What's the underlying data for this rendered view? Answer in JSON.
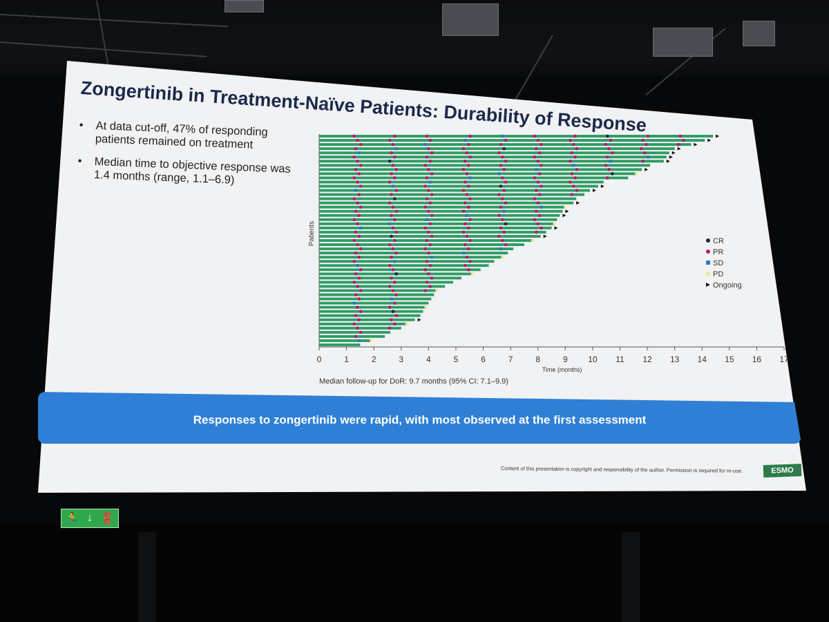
{
  "slide": {
    "title": "Zongertinib in Treatment-Naïve Patients: Durability of Response",
    "bullets": [
      "At data cut-off, 47% of responding patients remained on treatment",
      "Median time to objective response was 1.4 months (range, 1.1–6.9)"
    ],
    "banner": "Responses to zongertinib were rapid, with most observed at the first assessment",
    "footnote": "Content of this presentation is copyright and responsibility of the author. Permission is required for re-use.",
    "logo_text": "ESMO"
  },
  "chart_data": {
    "type": "swimmer",
    "title": "",
    "xlabel": "Time (months)",
    "ylabel": "Patients",
    "xlim": [
      0,
      17
    ],
    "x_ticks": [
      0,
      1,
      2,
      3,
      4,
      5,
      6,
      7,
      8,
      9,
      10,
      11,
      12,
      13,
      14,
      15,
      16,
      17
    ],
    "caption": "Median follow-up for DoR: 9.7 months (95% CI: 7.1–9.9)",
    "legend": [
      {
        "label": "CR",
        "color": "#1f2b45",
        "shape": "circle"
      },
      {
        "label": "PR",
        "color": "#b51f73",
        "shape": "circle"
      },
      {
        "label": "SD",
        "color": "#2f79c2",
        "shape": "square"
      },
      {
        "label": "PD",
        "color": "#f2e58a",
        "shape": "circle"
      },
      {
        "label": "Ongoing",
        "color": "#111111",
        "shape": "triangle"
      }
    ],
    "bar_color": "#2e9b63",
    "durations": [
      14.4,
      14.1,
      13.6,
      13.0,
      12.8,
      12.7,
      12.6,
      12.1,
      11.8,
      11.6,
      11.3,
      10.4,
      10.2,
      9.9,
      9.7,
      9.4,
      9.3,
      9.0,
      8.9,
      8.8,
      8.7,
      8.6,
      8.5,
      8.3,
      8.1,
      7.8,
      7.5,
      7.1,
      6.9,
      6.7,
      6.4,
      6.2,
      5.9,
      5.6,
      5.2,
      4.9,
      4.6,
      4.3,
      4.2,
      4.1,
      4.0,
      3.9,
      3.8,
      3.7,
      3.5,
      3.2,
      3.0,
      2.6,
      2.4,
      1.9,
      1.5
    ],
    "ongoing_rows": [
      0,
      1,
      2,
      3,
      4,
      5,
      6,
      8,
      12,
      13,
      16,
      18,
      19,
      22,
      24,
      44
    ]
  }
}
